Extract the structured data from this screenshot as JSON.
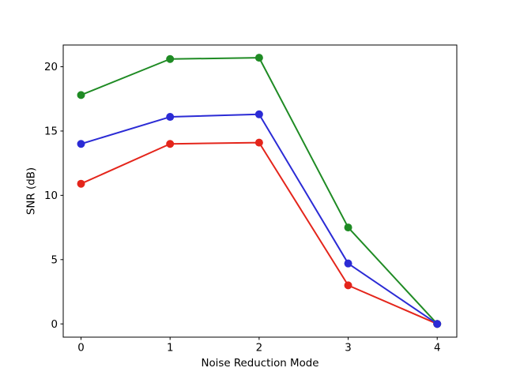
{
  "figure": {
    "background": "#ffffff",
    "spine_color": "#000000",
    "text_color": "#000000"
  },
  "chart_data": {
    "type": "line",
    "title": "",
    "xlabel": "Noise Reduction Mode",
    "ylabel": "SNR (dB)",
    "x": [
      0,
      1,
      2,
      3,
      4
    ],
    "series": [
      {
        "name": "red",
        "color": "#e4251b",
        "values": [
          10.9,
          14.0,
          14.1,
          3.0,
          0.0
        ]
      },
      {
        "name": "green",
        "color": "#1f8b24",
        "values": [
          17.8,
          20.6,
          20.7,
          7.5,
          0.0
        ]
      },
      {
        "name": "blue",
        "color": "#2b2bd5",
        "values": [
          14.0,
          16.1,
          16.3,
          4.7,
          0.0
        ]
      }
    ],
    "xticks": [
      0,
      1,
      2,
      3,
      4
    ],
    "yticks": [
      0,
      5,
      10,
      15,
      20
    ],
    "xlim": [
      -0.2,
      4.22
    ],
    "ylim": [
      -1.03,
      21.69
    ],
    "grid": false,
    "legend": null,
    "marker": "o",
    "marker_radius": 5,
    "line_width": 2
  }
}
